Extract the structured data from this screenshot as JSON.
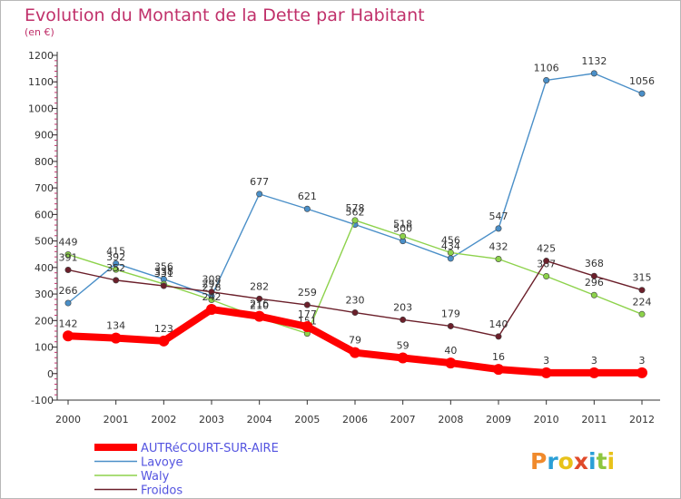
{
  "chart_data": {
    "type": "line",
    "title": "Evolution du Montant de la Dette par Habitant",
    "subtitle": "(en €)",
    "xlabel": "",
    "ylabel": "",
    "categories": [
      "2000",
      "2001",
      "2002",
      "2003",
      "2004",
      "2005",
      "2006",
      "2007",
      "2008",
      "2009",
      "2010",
      "2011",
      "2012"
    ],
    "ylim": [
      -100,
      1200
    ],
    "yticks": [
      -100,
      0,
      100,
      200,
      300,
      400,
      500,
      600,
      700,
      800,
      900,
      1000,
      1100,
      1200
    ],
    "grid": false,
    "legend_position": "bottom-left",
    "series": [
      {
        "name": "Lavoye",
        "color": "#4a8fc8",
        "values": [
          266,
          415,
          356,
          292,
          677,
          621,
          562,
          500,
          434,
          547,
          1106,
          1132,
          1056
        ]
      },
      {
        "name": "Waly",
        "color": "#8dd24b",
        "values": [
          449,
          392,
          338,
          278,
          210,
          151,
          578,
          518,
          456,
          432,
          367,
          296,
          224
        ]
      },
      {
        "name": "Froidos",
        "color": "#6b1f2a",
        "values": [
          391,
          352,
          331,
          308,
          282,
          259,
          230,
          203,
          179,
          140,
          425,
          368,
          315
        ]
      },
      {
        "name": "AUTRéCOURT-SUR-AIRE",
        "color": "#ff0000",
        "values": [
          142,
          134,
          123,
          242,
          216,
          177,
          79,
          59,
          40,
          16,
          3,
          3,
          3
        ]
      }
    ],
    "legend": [
      "AUTRéCOURT-SUR-AIRE",
      "Lavoye",
      "Waly",
      "Froidos"
    ]
  },
  "logo": {
    "text": "Proxiti",
    "letters": [
      "P",
      "r",
      "o",
      "x",
      "i",
      "t",
      "i"
    ],
    "colors": [
      "#f08a2c",
      "#2a9fd6",
      "#e8c21a",
      "#e04a2a",
      "#2a9fd6",
      "#8dc63f",
      "#e8c21a"
    ]
  }
}
